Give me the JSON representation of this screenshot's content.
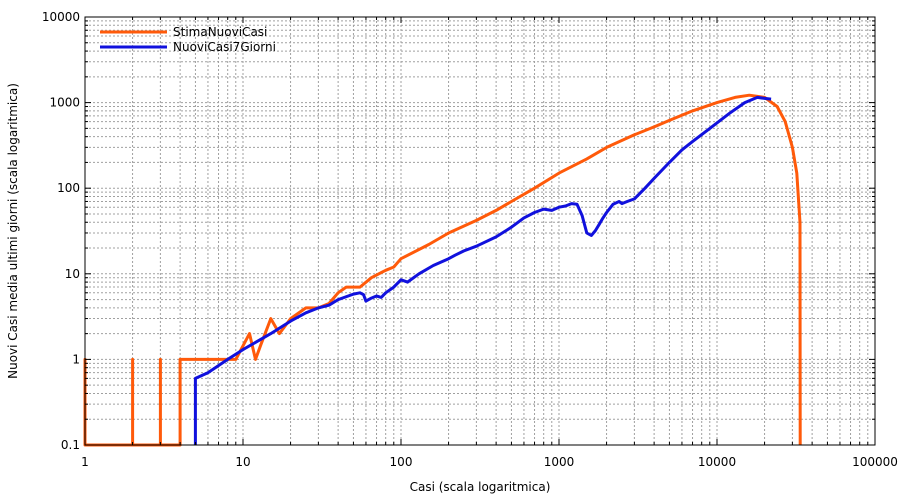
{
  "chart_data": {
    "type": "line",
    "xlabel": "Casi (scala logaritmica)",
    "ylabel": "Nuovi Casi media ultimi giorni (scala logaritmica)",
    "x_scale": "log",
    "y_scale": "log",
    "xlim": [
      1,
      100000
    ],
    "ylim": [
      0.1,
      10000
    ],
    "x_ticks": [
      "1",
      "10",
      "100",
      "1000",
      "10000",
      "100000"
    ],
    "y_ticks": [
      "0.1",
      "1",
      "10",
      "100",
      "1000",
      "10000"
    ],
    "grid": true,
    "legend_position": "top-left",
    "series": [
      {
        "name": "StimaNuoviCasi",
        "color": "#ff5a0a",
        "points": [
          [
            1,
            0.1
          ],
          [
            1,
            1
          ],
          [
            1,
            0.1
          ],
          [
            2,
            0.1
          ],
          [
            2,
            1
          ],
          [
            2,
            0.1
          ],
          [
            3,
            0.1
          ],
          [
            3,
            1
          ],
          [
            3,
            0.1
          ],
          [
            4,
            0.1
          ],
          [
            4,
            1
          ],
          [
            9,
            1
          ],
          [
            11,
            2
          ],
          [
            12,
            1
          ],
          [
            13,
            1.5
          ],
          [
            15,
            3
          ],
          [
            17,
            2
          ],
          [
            20,
            3
          ],
          [
            25,
            4
          ],
          [
            30,
            4
          ],
          [
            35,
            4.5
          ],
          [
            40,
            6
          ],
          [
            45,
            7
          ],
          [
            55,
            7
          ],
          [
            65,
            9
          ],
          [
            80,
            11
          ],
          [
            90,
            12
          ],
          [
            100,
            15
          ],
          [
            150,
            22
          ],
          [
            200,
            30
          ],
          [
            300,
            42
          ],
          [
            400,
            55
          ],
          [
            500,
            70
          ],
          [
            700,
            100
          ],
          [
            1000,
            150
          ],
          [
            1500,
            220
          ],
          [
            2000,
            300
          ],
          [
            3000,
            420
          ],
          [
            4000,
            520
          ],
          [
            5000,
            620
          ],
          [
            7000,
            800
          ],
          [
            10000,
            1000
          ],
          [
            13000,
            1150
          ],
          [
            16000,
            1220
          ],
          [
            20000,
            1150
          ],
          [
            24000,
            900
          ],
          [
            27000,
            600
          ],
          [
            30000,
            300
          ],
          [
            32000,
            150
          ],
          [
            33500,
            40
          ],
          [
            33600,
            0.1
          ]
        ]
      },
      {
        "name": "NuoviCasi7Giorni",
        "color": "#1111dd",
        "points": [
          [
            5,
            0.1
          ],
          [
            5,
            0.6
          ],
          [
            6,
            0.7
          ],
          [
            8,
            1
          ],
          [
            10,
            1.3
          ],
          [
            15,
            2
          ],
          [
            20,
            2.8
          ],
          [
            25,
            3.5
          ],
          [
            30,
            4
          ],
          [
            35,
            4.3
          ],
          [
            40,
            5
          ],
          [
            50,
            5.8
          ],
          [
            55,
            6
          ],
          [
            58,
            5.7
          ],
          [
            60,
            4.8
          ],
          [
            65,
            5.2
          ],
          [
            70,
            5.5
          ],
          [
            75,
            5.3
          ],
          [
            80,
            6
          ],
          [
            90,
            7
          ],
          [
            100,
            8.5
          ],
          [
            110,
            8
          ],
          [
            130,
            10
          ],
          [
            160,
            12.5
          ],
          [
            200,
            15
          ],
          [
            220,
            16.5
          ],
          [
            250,
            18.5
          ],
          [
            300,
            21
          ],
          [
            400,
            27
          ],
          [
            500,
            35
          ],
          [
            600,
            45
          ],
          [
            700,
            52
          ],
          [
            800,
            57
          ],
          [
            900,
            55
          ],
          [
            1000,
            60
          ],
          [
            1100,
            62
          ],
          [
            1200,
            66
          ],
          [
            1300,
            65
          ],
          [
            1400,
            48
          ],
          [
            1500,
            30
          ],
          [
            1600,
            28
          ],
          [
            1700,
            32
          ],
          [
            1800,
            38
          ],
          [
            1900,
            45
          ],
          [
            2000,
            52
          ],
          [
            2200,
            65
          ],
          [
            2400,
            70
          ],
          [
            2500,
            66
          ],
          [
            2700,
            70
          ],
          [
            3000,
            75
          ],
          [
            3500,
            100
          ],
          [
            4000,
            130
          ],
          [
            5000,
            200
          ],
          [
            6000,
            280
          ],
          [
            7000,
            350
          ],
          [
            9000,
            500
          ],
          [
            12000,
            750
          ],
          [
            15000,
            1000
          ],
          [
            18000,
            1150
          ],
          [
            20000,
            1120
          ],
          [
            22000,
            1100
          ]
        ]
      }
    ]
  }
}
